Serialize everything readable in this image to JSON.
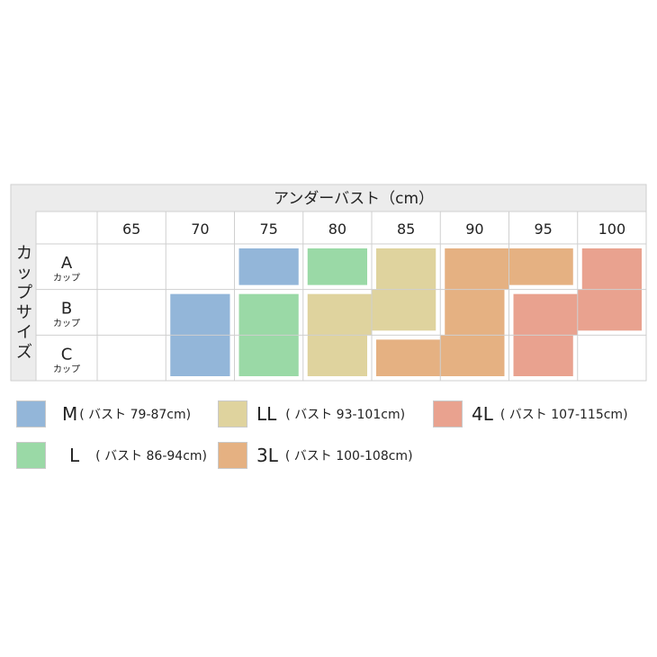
{
  "chart_data": {
    "type": "table",
    "title": "アンダーバスト（cm）",
    "row_header_title": "カップサイズ",
    "columns": [
      "65",
      "70",
      "75",
      "80",
      "85",
      "90",
      "95",
      "100"
    ],
    "rows": [
      {
        "label": "A",
        "sub": "カップ"
      },
      {
        "label": "B",
        "sub": "カップ"
      },
      {
        "label": "C",
        "sub": "カップ"
      }
    ],
    "cells": [
      {
        "row": "A",
        "col": "75",
        "size": "M"
      },
      {
        "row": "A",
        "col": "80",
        "size": "L"
      },
      {
        "row": "A",
        "col": "85",
        "size": "LL"
      },
      {
        "row": "A",
        "col": "90",
        "size": "3L"
      },
      {
        "row": "A",
        "col": "95",
        "size": "3L"
      },
      {
        "row": "A",
        "col": "100",
        "size": "4L"
      },
      {
        "row": "B",
        "col": "70",
        "size": "M"
      },
      {
        "row": "B",
        "col": "75",
        "size": "L"
      },
      {
        "row": "B",
        "col": "80",
        "size": "LL"
      },
      {
        "row": "B",
        "col": "85",
        "size": "LL"
      },
      {
        "row": "B",
        "col": "90",
        "size": "3L"
      },
      {
        "row": "B",
        "col": "95",
        "size": "4L"
      },
      {
        "row": "B",
        "col": "100",
        "size": "4L"
      },
      {
        "row": "C",
        "col": "70",
        "size": "M"
      },
      {
        "row": "C",
        "col": "75",
        "size": "L"
      },
      {
        "row": "C",
        "col": "80",
        "size": "LL"
      },
      {
        "row": "C",
        "col": "85",
        "size": "3L"
      },
      {
        "row": "C",
        "col": "90",
        "size": "3L"
      },
      {
        "row": "C",
        "col": "95",
        "size": "4L"
      }
    ],
    "merged_blocks": [
      {
        "size": "M",
        "cells": [
          [
            "A",
            "75"
          ]
        ]
      },
      {
        "size": "L",
        "cells": [
          [
            "A",
            "80"
          ]
        ]
      },
      {
        "size": "LL",
        "cells": [
          [
            "A",
            "85"
          ],
          [
            "B",
            "80"
          ],
          [
            "B",
            "85"
          ],
          [
            "C",
            "80"
          ]
        ]
      },
      {
        "size": "3L",
        "cells": [
          [
            "A",
            "90"
          ],
          [
            "A",
            "95"
          ],
          [
            "B",
            "90"
          ],
          [
            "C",
            "85"
          ],
          [
            "C",
            "90"
          ]
        ]
      },
      {
        "size": "4L",
        "cells": [
          [
            "A",
            "100"
          ],
          [
            "B",
            "95"
          ],
          [
            "B",
            "100"
          ],
          [
            "C",
            "95"
          ]
        ]
      },
      {
        "size": "M",
        "cells": [
          [
            "B",
            "70"
          ],
          [
            "C",
            "70"
          ]
        ]
      },
      {
        "size": "L",
        "cells": [
          [
            "B",
            "75"
          ],
          [
            "C",
            "75"
          ]
        ]
      }
    ],
    "legend": [
      {
        "size": "M",
        "range": "( バスト 79-87cm)",
        "color": "#93b6d9"
      },
      {
        "size": "L",
        "range": "( バスト 86-94cm)",
        "color": "#9ad9a6"
      },
      {
        "size": "LL",
        "range": "( バスト 93-101cm)",
        "color": "#dfd39e"
      },
      {
        "size": "3L",
        "range": "( バスト 100-108cm)",
        "color": "#e5b182"
      },
      {
        "size": "4L",
        "range": "( バスト 107-115cm)",
        "color": "#e9a28f"
      }
    ]
  },
  "colors": {
    "header_bg": "#ececec",
    "grid": "#cfcfcf",
    "M": "#93b6d9",
    "L": "#9ad9a6",
    "LL": "#dfd39e",
    "3L": "#e5b182",
    "4L": "#e9a28f"
  }
}
